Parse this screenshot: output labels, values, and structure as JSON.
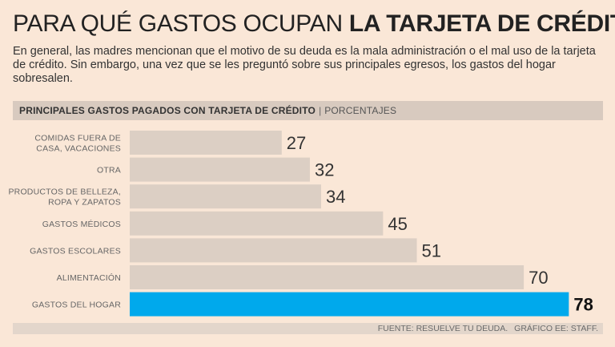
{
  "title": {
    "light": "PARA QUÉ GASTOS OCUPAN",
    "bold": "LA TARJETA DE CRÉDITO"
  },
  "intro": "En general, las madres mencionan que el motivo de su deuda es la mala administración o el mal uso de la tarjeta de crédito. Sin embargo, una vez que se les preguntó sobre sus principales egresos, los gastos del hogar sobresalen.",
  "header": {
    "bold": "PRINCIPALES GASTOS PAGADOS CON TARJETA DE CRÉDITO",
    "separator": "|",
    "light": "PORCENTAJES"
  },
  "footer": {
    "source": "FUENTE: RESUELVE TU DEUDA.",
    "credit": "GRÁFICO EE: STAFF."
  },
  "colors": {
    "bar_default": "#dccfc4",
    "bar_highlight": "#00a9ec",
    "label_text": "#666666",
    "value_text": "#333333"
  },
  "chart_data": {
    "type": "bar",
    "orientation": "horizontal",
    "title": "PRINCIPALES GASTOS PAGADOS CON TARJETA DE CRÉDITO",
    "unit": "PORCENTAJES",
    "xlim": [
      0,
      100
    ],
    "grid": false,
    "highlight_index": 6,
    "categories": [
      [
        "COMIDAS FUERA DE",
        "CASA, VACACIONES"
      ],
      [
        "OTRA"
      ],
      [
        "PRODUCTOS DE BELLEZA,",
        "ROPA Y ZAPATOS"
      ],
      [
        "GASTOS MÉDICOS"
      ],
      [
        "GASTOS ESCOLARES"
      ],
      [
        "ALIMENTACIÓN"
      ],
      [
        "GASTOS DEL HOGAR"
      ]
    ],
    "values": [
      27,
      32,
      34,
      45,
      51,
      70,
      78
    ]
  }
}
